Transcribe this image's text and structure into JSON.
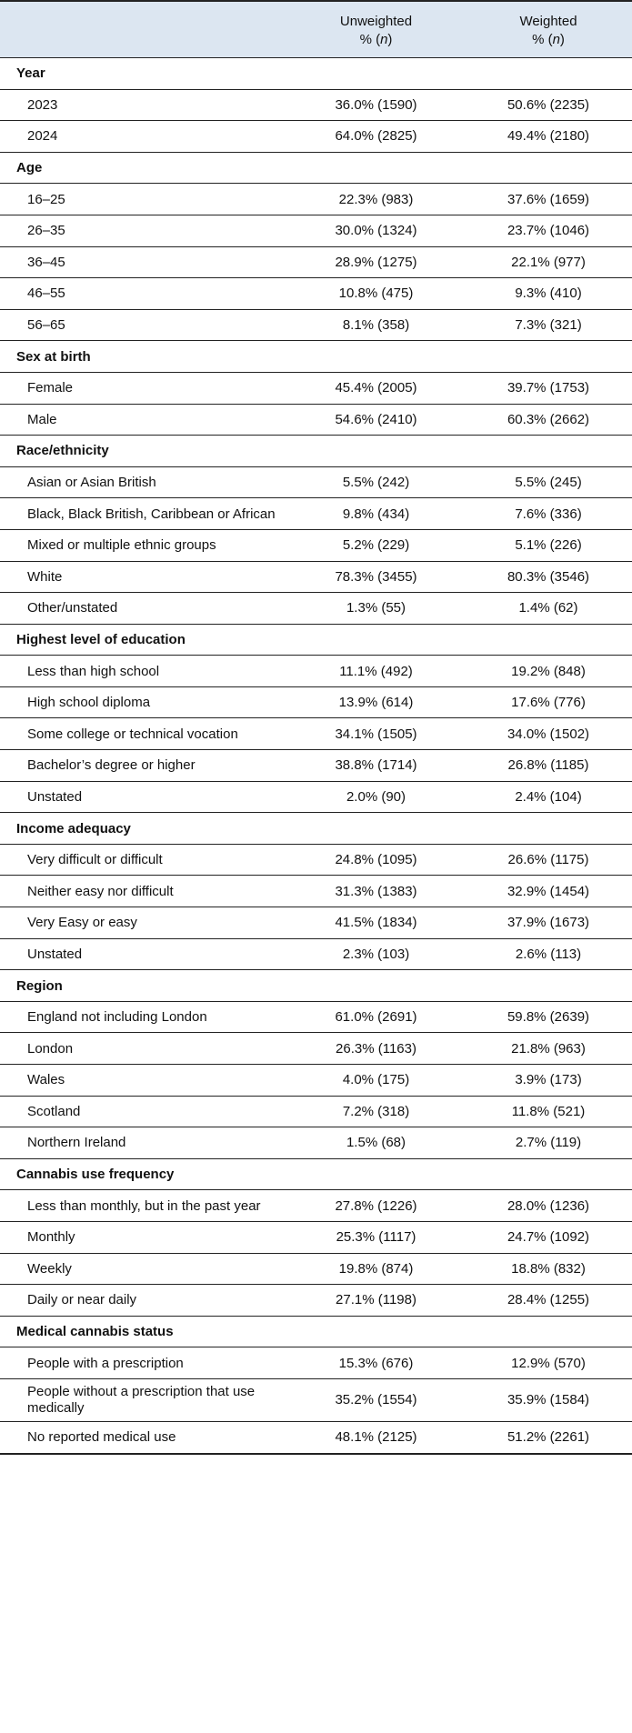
{
  "header": {
    "col_label": "",
    "unweighted_line1": "Unweighted",
    "unweighted_line2_prefix": "% (",
    "unweighted_n": "n",
    "unweighted_line2_suffix": ")",
    "weighted_line1": "Weighted",
    "weighted_line2_prefix": "% (",
    "weighted_n": "n",
    "weighted_line2_suffix": ")"
  },
  "sections": [
    {
      "title": "Year",
      "rows": [
        {
          "label": "2023",
          "unweighted": "36.0% (1590)",
          "weighted": "50.6% (2235)"
        },
        {
          "label": "2024",
          "unweighted": "64.0% (2825)",
          "weighted": "49.4% (2180)"
        }
      ]
    },
    {
      "title": "Age",
      "rows": [
        {
          "label": "16–25",
          "unweighted": "22.3% (983)",
          "weighted": "37.6% (1659)"
        },
        {
          "label": "26–35",
          "unweighted": "30.0% (1324)",
          "weighted": "23.7% (1046)"
        },
        {
          "label": "36–45",
          "unweighted": "28.9% (1275)",
          "weighted": "22.1% (977)"
        },
        {
          "label": "46–55",
          "unweighted": "10.8% (475)",
          "weighted": "9.3% (410)"
        },
        {
          "label": "56–65",
          "unweighted": "8.1% (358)",
          "weighted": "7.3% (321)"
        }
      ]
    },
    {
      "title": "Sex at birth",
      "rows": [
        {
          "label": "Female",
          "unweighted": "45.4% (2005)",
          "weighted": "39.7% (1753)"
        },
        {
          "label": "Male",
          "unweighted": "54.6% (2410)",
          "weighted": "60.3% (2662)"
        }
      ]
    },
    {
      "title": "Race/ethnicity",
      "rows": [
        {
          "label": "Asian or Asian British",
          "unweighted": "5.5% (242)",
          "weighted": "5.5% (245)"
        },
        {
          "label": "Black, Black British, Caribbean or African",
          "unweighted": "9.8% (434)",
          "weighted": "7.6% (336)"
        },
        {
          "label": "Mixed or multiple ethnic groups",
          "unweighted": "5.2% (229)",
          "weighted": "5.1% (226)"
        },
        {
          "label": "White",
          "unweighted": "78.3% (3455)",
          "weighted": "80.3% (3546)"
        },
        {
          "label": "Other/unstated",
          "unweighted": "1.3% (55)",
          "weighted": "1.4% (62)"
        }
      ]
    },
    {
      "title": "Highest level of education",
      "rows": [
        {
          "label": "Less than high school",
          "unweighted": "11.1% (492)",
          "weighted": "19.2% (848)"
        },
        {
          "label": "High school diploma",
          "unweighted": "13.9% (614)",
          "weighted": "17.6% (776)"
        },
        {
          "label": "Some college or technical vocation",
          "unweighted": "34.1% (1505)",
          "weighted": "34.0% (1502)"
        },
        {
          "label": "Bachelor’s degree or higher",
          "unweighted": "38.8% (1714)",
          "weighted": "26.8% (1185)"
        },
        {
          "label": "Unstated",
          "unweighted": "2.0% (90)",
          "weighted": "2.4% (104)"
        }
      ]
    },
    {
      "title": "Income adequacy",
      "rows": [
        {
          "label": "Very difficult or difficult",
          "unweighted": "24.8% (1095)",
          "weighted": "26.6% (1175)"
        },
        {
          "label": "Neither easy nor difficult",
          "unweighted": "31.3% (1383)",
          "weighted": "32.9% (1454)"
        },
        {
          "label": "Very Easy or easy",
          "unweighted": "41.5% (1834)",
          "weighted": "37.9% (1673)"
        },
        {
          "label": "Unstated",
          "unweighted": "2.3% (103)",
          "weighted": "2.6% (113)"
        }
      ]
    },
    {
      "title": "Region",
      "rows": [
        {
          "label": "England not including London",
          "unweighted": "61.0% (2691)",
          "weighted": "59.8% (2639)"
        },
        {
          "label": "London",
          "unweighted": "26.3% (1163)",
          "weighted": "21.8% (963)"
        },
        {
          "label": "Wales",
          "unweighted": "4.0% (175)",
          "weighted": "3.9% (173)"
        },
        {
          "label": "Scotland",
          "unweighted": "7.2% (318)",
          "weighted": "11.8% (521)"
        },
        {
          "label": "Northern Ireland",
          "unweighted": "1.5% (68)",
          "weighted": "2.7% (119)"
        }
      ]
    },
    {
      "title": "Cannabis use frequency",
      "rows": [
        {
          "label": "Less than monthly, but in the past year",
          "unweighted": "27.8% (1226)",
          "weighted": "28.0% (1236)"
        },
        {
          "label": "Monthly",
          "unweighted": "25.3% (1117)",
          "weighted": "24.7% (1092)"
        },
        {
          "label": "Weekly",
          "unweighted": "19.8% (874)",
          "weighted": "18.8% (832)"
        },
        {
          "label": "Daily or near daily",
          "unweighted": "27.1% (1198)",
          "weighted": "28.4% (1255)"
        }
      ]
    },
    {
      "title": "Medical cannabis status",
      "rows": [
        {
          "label": "People with a prescription",
          "unweighted": "15.3% (676)",
          "weighted": "12.9% (570)"
        },
        {
          "label": "People without a prescription that use medically",
          "unweighted": "35.2% (1554)",
          "weighted": "35.9% (1584)",
          "tall": true
        },
        {
          "label": "No reported medical use",
          "unweighted": "48.1% (2125)",
          "weighted": "51.2% (2261)"
        }
      ]
    }
  ]
}
